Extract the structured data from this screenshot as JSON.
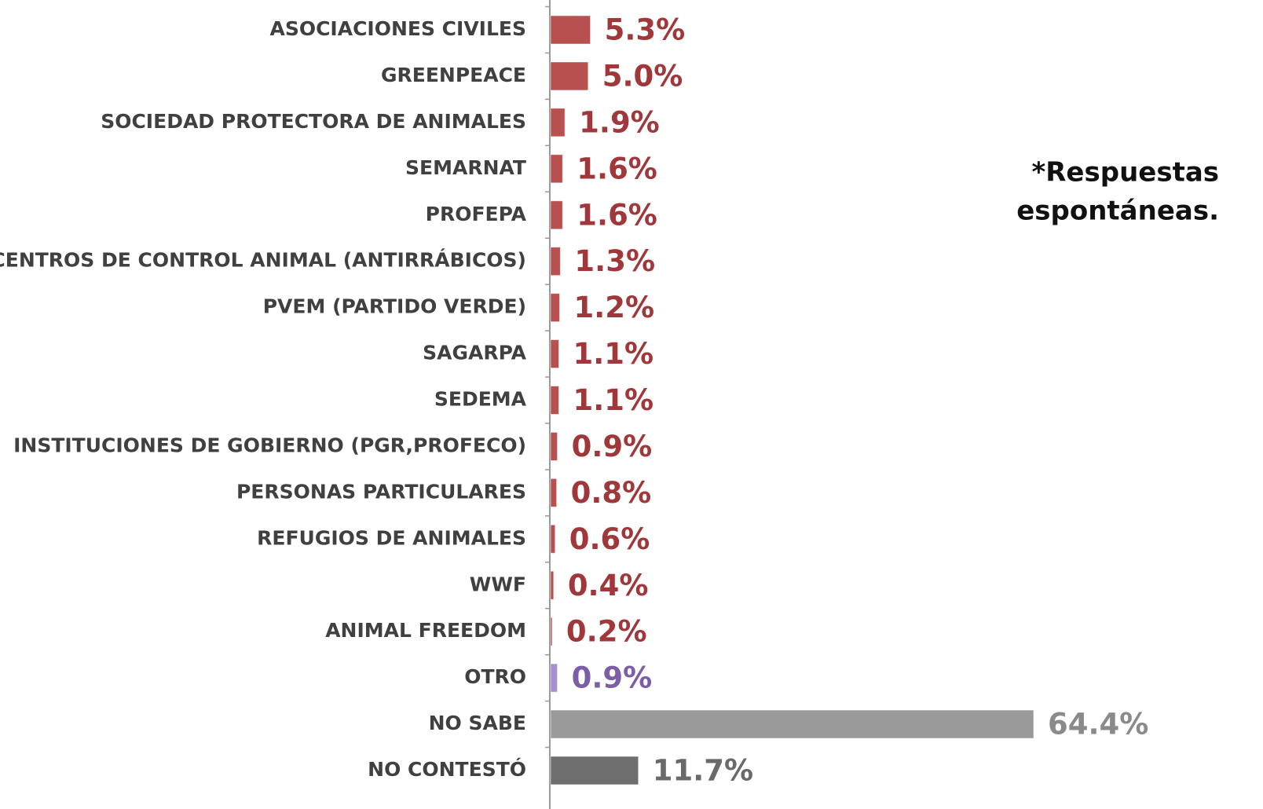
{
  "chart_data": {
    "type": "barh",
    "categories": [
      "ASOCIACIONES CIVILES",
      "GREENPEACE",
      "SOCIEDAD PROTECTORA DE ANIMALES",
      "SEMARNAT",
      "PROFEPA",
      "CENTROS DE CONTROL ANIMAL (ANTIRRÁBICOS)",
      "PVEM (PARTIDO VERDE)",
      "SAGARPA",
      "SEDEMA",
      "INSTITUCIONES DE GOBIERNO (PGR,PROFECO)",
      "PERSONAS PARTICULARES",
      "REFUGIOS DE ANIMALES",
      "WWF",
      "ANIMAL FREEDOM",
      "OTRO",
      "NO SABE",
      "NO CONTESTÓ"
    ],
    "values": [
      5.3,
      5.0,
      1.9,
      1.6,
      1.6,
      1.3,
      1.2,
      1.1,
      1.1,
      0.9,
      0.8,
      0.6,
      0.4,
      0.2,
      0.9,
      64.4,
      11.7
    ],
    "value_labels": [
      "5.3%",
      "5.0%",
      "1.9%",
      "1.6%",
      "1.6%",
      "1.3%",
      "1.2%",
      "1.1%",
      "1.1%",
      "0.9%",
      "0.8%",
      "0.6%",
      "0.4%",
      "0.2%",
      "0.9%",
      "64.4%",
      "11.7%"
    ],
    "colors": [
      "#b8504f",
      "#b8504f",
      "#b8504f",
      "#b8504f",
      "#b8504f",
      "#b8504f",
      "#b8504f",
      "#b8504f",
      "#b8504f",
      "#b8504f",
      "#b8504f",
      "#b8504f",
      "#b8504f",
      "#b8504f",
      "#a48fd0",
      "#9a9a9a",
      "#6e6e6e"
    ],
    "label_colors": [
      "#a0373a",
      "#a0373a",
      "#a0373a",
      "#a0373a",
      "#a0373a",
      "#a0373a",
      "#a0373a",
      "#a0373a",
      "#a0373a",
      "#a0373a",
      "#a0373a",
      "#a0373a",
      "#a0373a",
      "#a0373a",
      "#7b5ea7",
      "#8a8a8a",
      "#6a6a6a"
    ],
    "annotation": [
      "*Respuestas",
      "espontáneas."
    ]
  }
}
